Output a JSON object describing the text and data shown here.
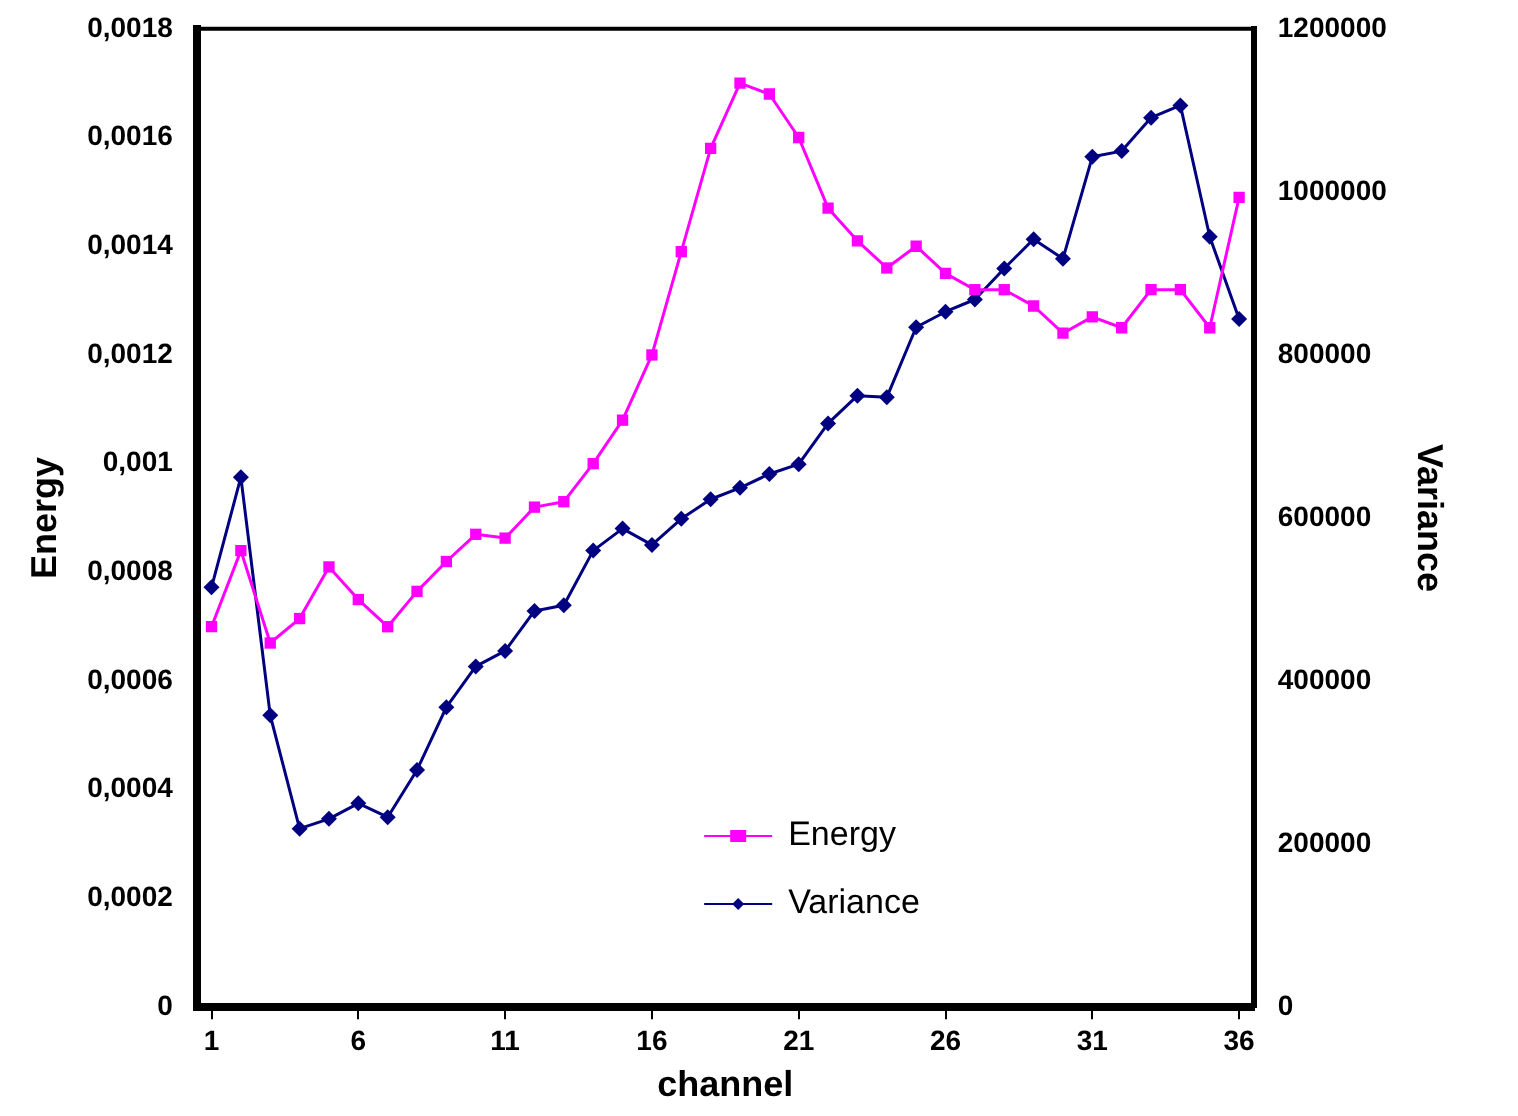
{
  "chart_data": {
    "type": "line",
    "xlabel": "channel",
    "ylabel": "Energy",
    "y2label": "Variance",
    "x": [
      1,
      2,
      3,
      4,
      5,
      6,
      7,
      8,
      9,
      10,
      11,
      12,
      13,
      14,
      15,
      16,
      17,
      18,
      19,
      20,
      21,
      22,
      23,
      24,
      25,
      26,
      27,
      28,
      29,
      30,
      31,
      32,
      33,
      34,
      35,
      36
    ],
    "xlim": [
      0.5,
      36.5
    ],
    "xticks": [
      1,
      6,
      11,
      16,
      21,
      26,
      31,
      36
    ],
    "series": [
      {
        "name": "Energy",
        "color": "#ff00ff",
        "marker": "square",
        "values": [
          0.0007,
          0.00084,
          0.00067,
          0.000715,
          0.00081,
          0.00075,
          0.0007,
          0.000765,
          0.00082,
          0.00087,
          0.000863,
          0.00092,
          0.00093,
          0.001,
          0.00108,
          0.0012,
          0.00139,
          0.00158,
          0.0017,
          0.00168,
          0.0016,
          0.00147,
          0.00141,
          0.00136,
          0.0014,
          0.00135,
          0.00132,
          0.00132,
          0.00129,
          0.00124,
          0.00127,
          0.00125,
          0.00132,
          0.00132,
          0.00125,
          0.00149
        ]
      },
      {
        "name": "Variance",
        "color": "#000080",
        "marker": "diamond",
        "axis": "y2",
        "values": [
          515000,
          650000,
          358000,
          219000,
          231000,
          250000,
          233000,
          291000,
          368000,
          418000,
          437000,
          486000,
          493000,
          560000,
          587000,
          567000,
          599000,
          623000,
          637000,
          654000,
          666000,
          716000,
          750000,
          748000,
          834000,
          853000,
          868000,
          906000,
          942000,
          918000,
          1043000,
          1050000,
          1091000,
          1106000,
          945000,
          844000
        ]
      }
    ],
    "ylim": [
      0,
      0.0018
    ],
    "yticks": [
      0,
      {
        "value": 0.0002,
        "label": "0,0002"
      },
      {
        "value": 0.0004,
        "label": "0,0004"
      },
      {
        "value": 0.0006,
        "label": "0,0006"
      },
      {
        "value": 0.0008,
        "label": "0,0008"
      },
      {
        "value": 0.001,
        "label": "0,001"
      },
      {
        "value": 0.0012,
        "label": "0,0012"
      },
      {
        "value": 0.0014,
        "label": "0,0014"
      },
      {
        "value": 0.0016,
        "label": "0,0016"
      },
      {
        "value": 0.0018,
        "label": "0,0018"
      }
    ],
    "y2lim": [
      0,
      1200000
    ],
    "y2ticks": [
      0,
      200000,
      400000,
      600000,
      800000,
      1000000,
      1200000
    ],
    "grid": false,
    "legend": "bottom right",
    "line_style": "solid"
  }
}
